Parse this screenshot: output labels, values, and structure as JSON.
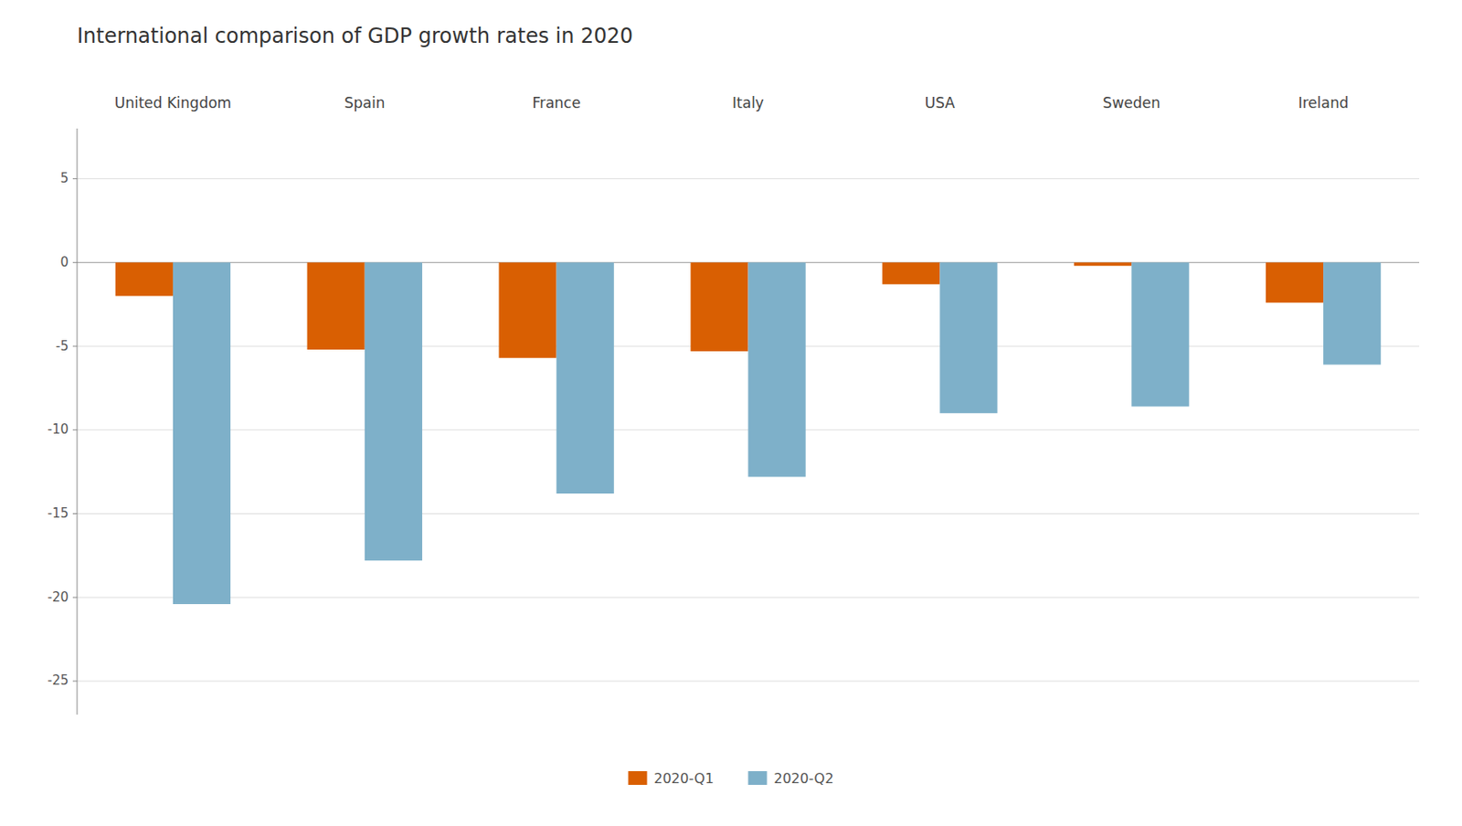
{
  "chart_data": {
    "type": "bar",
    "title": "International comparison of GDP growth rates in 2020",
    "categories": [
      "United Kingdom",
      "Spain",
      "France",
      "Italy",
      "USA",
      "Sweden",
      "Ireland"
    ],
    "series": [
      {
        "name": "2020-Q1",
        "color": "#d95f02",
        "values": [
          -2.0,
          -5.2,
          -5.7,
          -5.3,
          -1.3,
          -0.2,
          -2.4
        ]
      },
      {
        "name": "2020-Q2",
        "color": "#7eb0c9",
        "values": [
          -20.4,
          -17.8,
          -13.8,
          -12.8,
          -9.0,
          -8.6,
          -6.1
        ]
      }
    ],
    "ylim": [
      -27,
      8
    ],
    "yticks": [
      5,
      0,
      -5,
      -10,
      -15,
      -20,
      -25
    ],
    "grid": true,
    "legend": "bottom"
  }
}
